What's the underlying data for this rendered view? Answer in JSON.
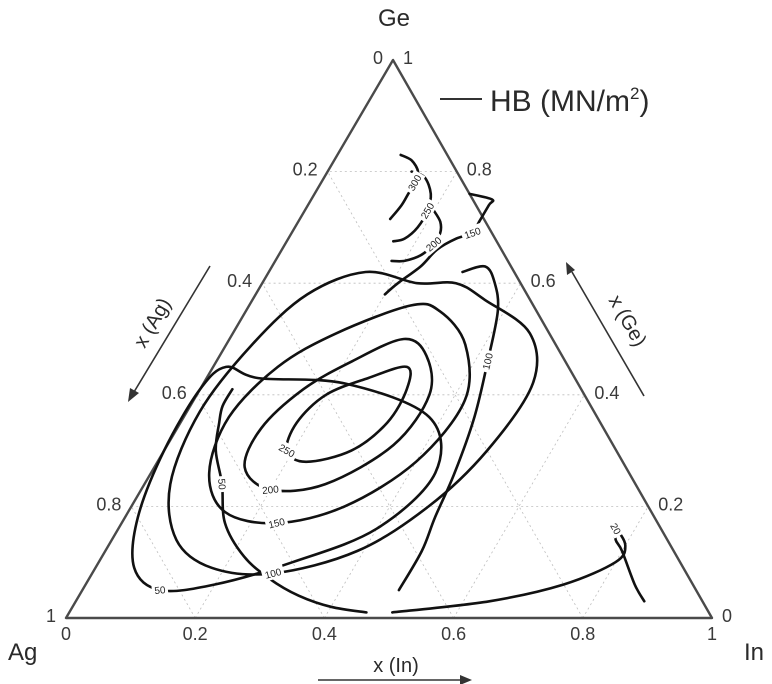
{
  "chart_data": {
    "type": "ternary-contour",
    "vertices": {
      "top": "Ge",
      "left": "Ag",
      "right": "In"
    },
    "axes": {
      "bottom": {
        "label": "x (In)",
        "ticks": [
          "0",
          "0.2",
          "0.4",
          "0.6",
          "0.8",
          "1"
        ]
      },
      "left": {
        "label": "x (Ag)",
        "ticks": [
          "0",
          "0.2",
          "0.4",
          "0.6",
          "0.8",
          "1"
        ]
      },
      "right": {
        "label": "x (Ge)",
        "ticks": [
          "0",
          "0.2",
          "0.4",
          "0.6",
          "0.8",
          "1"
        ]
      }
    },
    "legend": {
      "text": "HB (MN/m",
      "superscript": "2",
      "suffix": ")",
      "placement": "top-right"
    },
    "grid": true,
    "contours": [
      {
        "level": 300,
        "label": "300",
        "points": [
          [
            0.83,
            0.098,
            0.072
          ],
          [
            0.82,
            0.12,
            0.06
          ],
          [
            0.8,
            0.14,
            0.06
          ],
          [
            0.78,
            0.145,
            0.075
          ],
          [
            0.76,
            0.145,
            0.095
          ],
          [
            0.74,
            0.145,
            0.115
          ],
          [
            0.715,
            0.14,
            0.145
          ]
        ]
      },
      {
        "level": 250,
        "label": "250",
        "points": [
          [
            0.8,
            0.13,
            0.07
          ],
          [
            0.79,
            0.155,
            0.055
          ],
          [
            0.76,
            0.18,
            0.06
          ],
          [
            0.73,
            0.19,
            0.08
          ],
          [
            0.7,
            0.19,
            0.11
          ],
          [
            0.68,
            0.18,
            0.14
          ],
          [
            0.675,
            0.165,
            0.16
          ]
        ]
      },
      {
        "level": 200,
        "label": "200",
        "points": [
          [
            0.73,
            0.2,
            0.07
          ],
          [
            0.71,
            0.22,
            0.07
          ],
          [
            0.69,
            0.23,
            0.08
          ],
          [
            0.67,
            0.23,
            0.1
          ],
          [
            0.65,
            0.22,
            0.13
          ],
          [
            0.64,
            0.2,
            0.16
          ],
          [
            0.64,
            0.18,
            0.18
          ]
        ]
      },
      {
        "level": 150,
        "label": "150",
        "points": [
          [
            0.76,
            0.24,
            0.0
          ],
          [
            0.75,
            0.28,
            -0.03
          ],
          [
            0.74,
            0.28,
            -0.02
          ],
          [
            0.71,
            0.28,
            0.01
          ],
          [
            0.69,
            0.28,
            0.03
          ],
          [
            0.68,
            0.26,
            0.06
          ],
          [
            0.66,
            0.24,
            0.1
          ],
          [
            0.63,
            0.23,
            0.14
          ],
          [
            0.6,
            0.21,
            0.19
          ],
          [
            0.58,
            0.2,
            0.22
          ]
        ]
      },
      {
        "level": 100,
        "label": "100",
        "points": [
          [
            0.62,
            0.3,
            0.08
          ],
          [
            0.63,
            0.33,
            0.04
          ],
          [
            0.6,
            0.36,
            0.04
          ],
          [
            0.55,
            0.39,
            0.06
          ],
          [
            0.46,
            0.42,
            0.12
          ],
          [
            0.36,
            0.45,
            0.19
          ],
          [
            0.26,
            0.47,
            0.27
          ],
          [
            0.18,
            0.48,
            0.34
          ],
          [
            0.12,
            0.49,
            0.39
          ],
          [
            0.05,
            0.49,
            0.46
          ]
        ]
      },
      {
        "level": 50,
        "label": "50",
        "points": [
          [
            0.41,
            0.05,
            0.54
          ],
          [
            0.38,
            0.05,
            0.57
          ],
          [
            0.35,
            0.06,
            0.59
          ],
          [
            0.3,
            0.08,
            0.62
          ],
          [
            0.24,
            0.12,
            0.64
          ],
          [
            0.17,
            0.16,
            0.67
          ],
          [
            0.11,
            0.22,
            0.67
          ],
          [
            0.07,
            0.28,
            0.65
          ],
          [
            0.04,
            0.34,
            0.62
          ],
          [
            0.02,
            0.4,
            0.58
          ],
          [
            0.01,
            0.46,
            0.53
          ]
        ]
      },
      {
        "level": 20,
        "label": "20",
        "points": [
          [
            0.03,
            0.88,
            0.09
          ],
          [
            0.06,
            0.85,
            0.09
          ],
          [
            0.12,
            0.8,
            0.08
          ],
          [
            0.14,
            0.78,
            0.08
          ],
          [
            0.16,
            0.77,
            0.07
          ],
          [
            0.13,
            0.8,
            0.07
          ],
          [
            0.1,
            0.8,
            0.1
          ],
          [
            0.06,
            0.74,
            0.2
          ],
          [
            0.03,
            0.64,
            0.33
          ],
          [
            0.01,
            0.5,
            0.49
          ]
        ]
      }
    ],
    "loops": [
      {
        "level": 250,
        "label": "250",
        "points": [
          [
            0.45,
            0.3,
            0.25
          ],
          [
            0.43,
            0.25,
            0.32
          ],
          [
            0.4,
            0.2,
            0.4
          ],
          [
            0.35,
            0.18,
            0.47
          ],
          [
            0.3,
            0.19,
            0.51
          ],
          [
            0.28,
            0.23,
            0.49
          ],
          [
            0.3,
            0.29,
            0.41
          ],
          [
            0.35,
            0.32,
            0.33
          ],
          [
            0.41,
            0.32,
            0.27
          ]
        ]
      },
      {
        "level": 200,
        "label": "200",
        "points": [
          [
            0.5,
            0.27,
            0.23
          ],
          [
            0.46,
            0.21,
            0.33
          ],
          [
            0.41,
            0.16,
            0.43
          ],
          [
            0.34,
            0.13,
            0.53
          ],
          [
            0.27,
            0.14,
            0.59
          ],
          [
            0.23,
            0.2,
            0.57
          ],
          [
            0.24,
            0.28,
            0.48
          ],
          [
            0.31,
            0.35,
            0.34
          ],
          [
            0.4,
            0.36,
            0.24
          ],
          [
            0.47,
            0.32,
            0.21
          ]
        ]
      },
      {
        "level": 150,
        "label": "150",
        "points": [
          [
            0.56,
            0.25,
            0.19
          ],
          [
            0.51,
            0.16,
            0.33
          ],
          [
            0.45,
            0.1,
            0.45
          ],
          [
            0.36,
            0.07,
            0.57
          ],
          [
            0.26,
            0.09,
            0.65
          ],
          [
            0.19,
            0.15,
            0.66
          ],
          [
            0.17,
            0.24,
            0.59
          ],
          [
            0.2,
            0.33,
            0.47
          ],
          [
            0.28,
            0.4,
            0.32
          ],
          [
            0.39,
            0.42,
            0.19
          ],
          [
            0.49,
            0.37,
            0.14
          ],
          [
            0.55,
            0.3,
            0.15
          ]
        ]
      },
      {
        "level": 100,
        "label": "100",
        "points": [
          [
            0.6,
            0.24,
            0.16
          ],
          [
            0.62,
            0.15,
            0.23
          ],
          [
            0.58,
            0.08,
            0.34
          ],
          [
            0.49,
            0.04,
            0.47
          ],
          [
            0.37,
            0.02,
            0.61
          ],
          [
            0.24,
            0.04,
            0.72
          ],
          [
            0.14,
            0.1,
            0.76
          ],
          [
            0.09,
            0.18,
            0.73
          ],
          [
            0.08,
            0.28,
            0.64
          ],
          [
            0.12,
            0.39,
            0.49
          ],
          [
            0.2,
            0.46,
            0.34
          ],
          [
            0.3,
            0.5,
            0.2
          ],
          [
            0.42,
            0.51,
            0.07
          ],
          [
            0.51,
            0.46,
            0.03
          ],
          [
            0.57,
            0.36,
            0.07
          ],
          [
            0.6,
            0.3,
            0.1
          ]
        ]
      },
      {
        "level": 50,
        "label": "50",
        "points": [
          [
            0.43,
            0.08,
            0.49
          ],
          [
            0.45,
            0.02,
            0.53
          ],
          [
            0.41,
            0.0,
            0.59
          ],
          [
            0.3,
            0.0,
            0.7
          ],
          [
            0.18,
            0.02,
            0.8
          ],
          [
            0.09,
            0.06,
            0.85
          ],
          [
            0.05,
            0.12,
            0.83
          ],
          [
            0.06,
            0.2,
            0.74
          ],
          [
            0.1,
            0.3,
            0.6
          ],
          [
            0.16,
            0.4,
            0.44
          ],
          [
            0.26,
            0.44,
            0.3
          ],
          [
            0.36,
            0.38,
            0.26
          ],
          [
            0.42,
            0.22,
            0.36
          ]
        ]
      }
    ]
  }
}
